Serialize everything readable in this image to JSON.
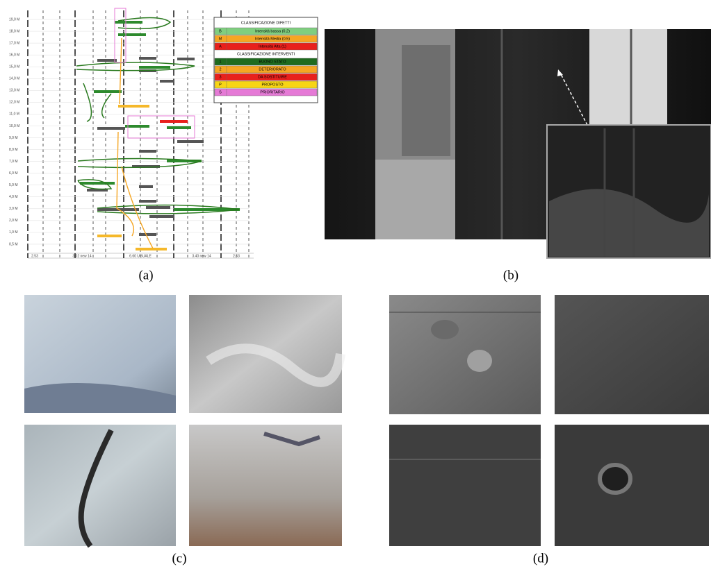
{
  "panel_a": {
    "legend": {
      "defects_title": "CLASSIFICAZIONE DIFETTI",
      "defects": [
        {
          "code": "B",
          "label": "Intensità bassa (0,2)",
          "color": "#7fce7f"
        },
        {
          "code": "M",
          "label": "Intensità Media (0,5)",
          "color": "#f5a623"
        },
        {
          "code": "A",
          "label": "Intensità Alta (1)",
          "color": "#e8201c"
        }
      ],
      "interventions_title": "CLASSIFICAZIONE INTERVENTI",
      "interventions": [
        {
          "code": "1",
          "label": "BUONO STATO",
          "color": "#1f6b1f"
        },
        {
          "code": "2",
          "label": "DETERIORATO",
          "color": "#f5a623"
        },
        {
          "code": "3",
          "label": "DA SOSTITUIRE",
          "color": "#e8201c"
        },
        {
          "code": "P",
          "label": "PROPOSTO",
          "color": "#f7d515"
        },
        {
          "code": "S",
          "label": "PRIORITARIO",
          "color": "#e57ad6"
        }
      ]
    },
    "row_labels": [
      "19,0 M",
      "18,0 M",
      "17,0 M",
      "16,0 M",
      "15,0 M",
      "14,0 M",
      "13,0 M",
      "12,0 M",
      "11,0 M",
      "10,0 M",
      "9,0 M",
      "8,0 M",
      "7,0 M",
      "6,0 M",
      "5,0 M",
      "4,0 M",
      "3,0 M",
      "2,0 M",
      "1,0 M",
      "0,5 M"
    ],
    "bottom_labels": [
      "2.53",
      "3.02 new 14",
      "6.60 UGUALE",
      "3.40 new 14",
      "2.53"
    ]
  },
  "captions": [
    "(a)",
    "(b)",
    "(c)",
    "(d)"
  ]
}
